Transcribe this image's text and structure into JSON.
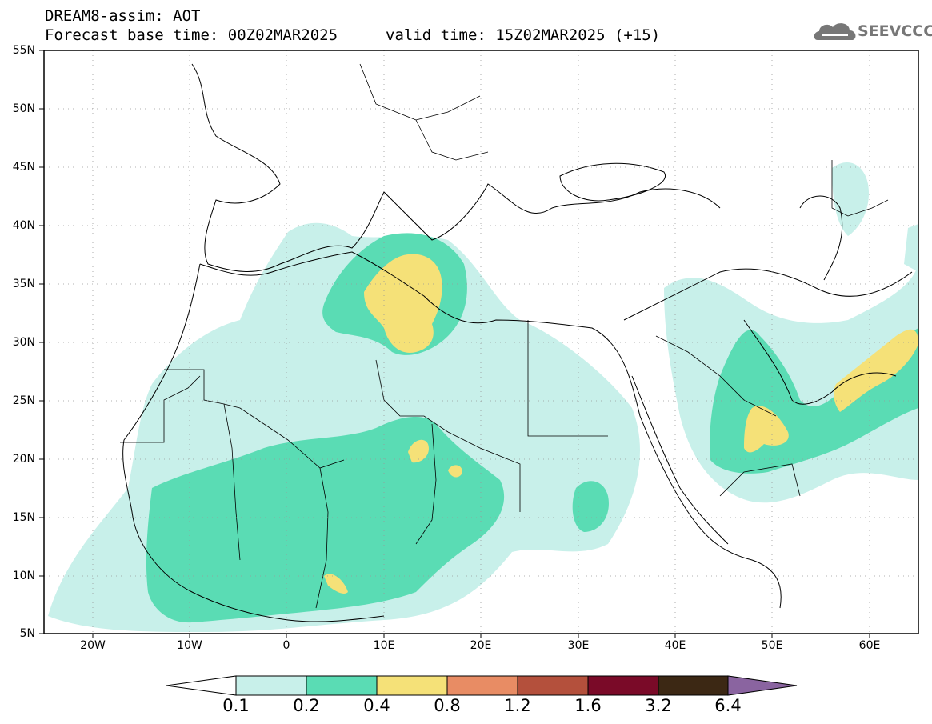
{
  "title": {
    "line1": "DREAM8-assim: AOT",
    "line2": "Forecast base time: 00Z02MAR2025",
    "valid": "valid time: 15Z02MAR2025 (+15)"
  },
  "logo": {
    "text": "SEEVCCC",
    "icon": "cloud-icon"
  },
  "map": {
    "variable": "Aerosol optical thickness",
    "lat_labels": [
      "55N",
      "50N",
      "45N",
      "40N",
      "35N",
      "30N",
      "25N",
      "20N",
      "15N",
      "10N",
      "5N"
    ],
    "lon_labels": [
      "20W",
      "10W",
      "0",
      "10E",
      "20E",
      "30E",
      "40E",
      "50E",
      "60E"
    ],
    "grid": "dotted"
  },
  "colorbar": {
    "labels": [
      "0.1",
      "0.2",
      "0.4",
      "0.8",
      "1.2",
      "1.6",
      "3.2",
      "6.4"
    ],
    "colors": [
      "#ffffff",
      "#c8f0ea",
      "#5adcb4",
      "#f5e178",
      "#e88c64",
      "#b4503c",
      "#7a0a28",
      "#3c2814",
      "#8a64a0"
    ]
  }
}
